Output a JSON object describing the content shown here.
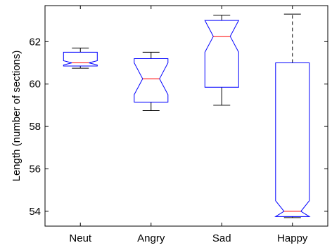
{
  "chart_data": {
    "type": "boxplot",
    "ylabel": "Length (number of sections)",
    "xlabel": "",
    "title": "",
    "categories": [
      "Neut",
      "Angry",
      "Sad",
      "Happy"
    ],
    "ylim": [
      53.3,
      63.7
    ],
    "yticks": [
      54,
      56,
      58,
      60,
      62
    ],
    "notched": true,
    "boxes": [
      {
        "category": "Neut",
        "whisker_low": 60.75,
        "q1": 60.85,
        "median": 61.0,
        "q3": 61.5,
        "whisker_high": 61.7,
        "notch_low": 60.9,
        "notch_high": 61.1
      },
      {
        "category": "Angry",
        "whisker_low": 58.75,
        "q1": 59.15,
        "median": 60.25,
        "q3": 61.2,
        "whisker_high": 61.5,
        "notch_low": 59.5,
        "notch_high": 61.0
      },
      {
        "category": "Sad",
        "whisker_low": 59.0,
        "q1": 59.85,
        "median": 62.25,
        "q3": 63.0,
        "whisker_high": 63.25,
        "notch_low": 61.5,
        "notch_high": 63.0
      },
      {
        "category": "Happy",
        "whisker_low": 53.7,
        "q1": 53.75,
        "median": 54.0,
        "q3": 61.0,
        "whisker_high": 63.3,
        "notch_low": 53.75,
        "notch_high": 54.5
      }
    ],
    "colors": {
      "box": "#0000ff",
      "median": "#ff0000",
      "whisker": "#000000",
      "axis": "#000000"
    },
    "grid": false
  }
}
